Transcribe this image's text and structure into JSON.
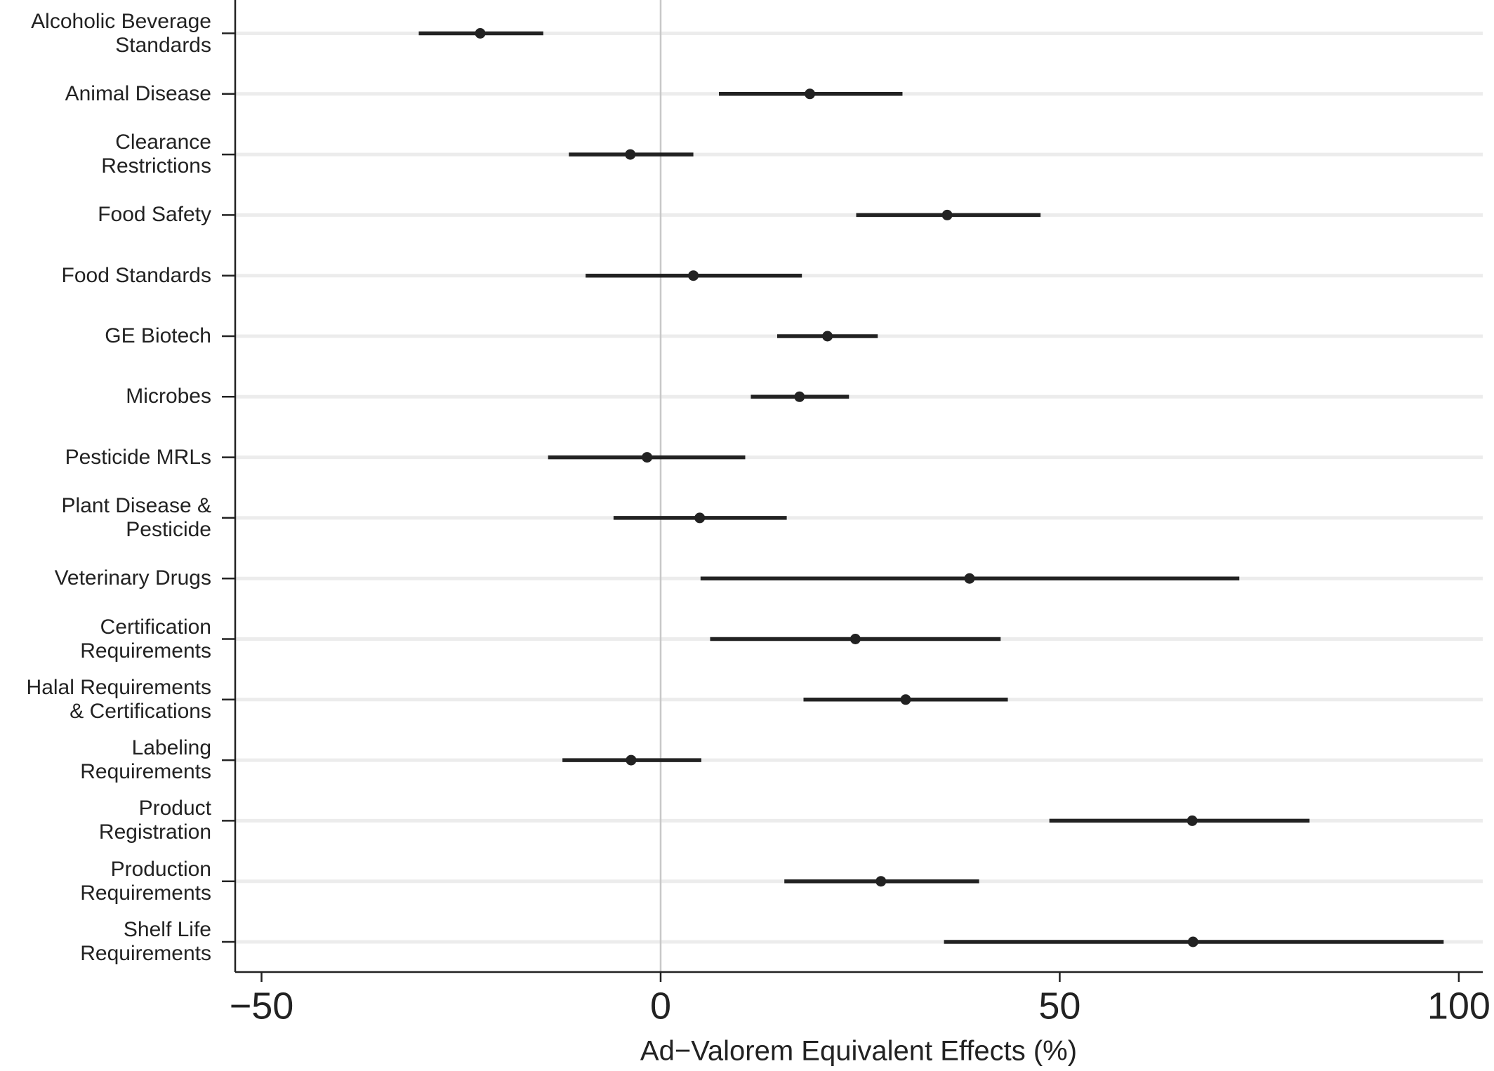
{
  "chart_data": {
    "type": "forest",
    "xlabel": "Ad−Valorem Equivalent Effects (%)",
    "categories": [
      "Alcoholic Beverage\nStandards",
      "Animal Disease",
      "Clearance\nRestrictions",
      "Food Safety",
      "Food Standards",
      "GE Biotech",
      "Microbes",
      "Pesticide MRLs",
      "Plant Disease &\nPesticide",
      "Veterinary Drugs",
      "Certification\nRequirements",
      "Halal Requirements\n& Certifications",
      "Labeling\nRequirements",
      "Product\nRegistration",
      "Production\nRequirements",
      "Shelf Life\nRequirements"
    ],
    "values": [
      -22.6,
      18.7,
      -3.8,
      35.9,
      4.1,
      20.9,
      17.4,
      -1.7,
      4.9,
      38.7,
      24.4,
      30.7,
      -3.7,
      66.6,
      27.6,
      66.7
    ],
    "lower": [
      -30.3,
      7.3,
      -11.5,
      24.5,
      -9.4,
      14.6,
      11.3,
      -14.1,
      -5.9,
      5.0,
      6.2,
      17.9,
      -12.3,
      48.7,
      15.5,
      35.5
    ],
    "upper": [
      -14.7,
      30.3,
      4.1,
      47.6,
      17.7,
      27.2,
      23.6,
      10.6,
      15.8,
      72.5,
      42.6,
      43.5,
      5.1,
      81.3,
      39.9,
      98.1
    ],
    "color": "#222222",
    "xlim": [
      -53.3,
      103
    ],
    "xticks": [
      {
        "value": -50,
        "label": "−50"
      },
      0,
      50,
      100
    ],
    "reference_line": 0,
    "grid": true
  }
}
